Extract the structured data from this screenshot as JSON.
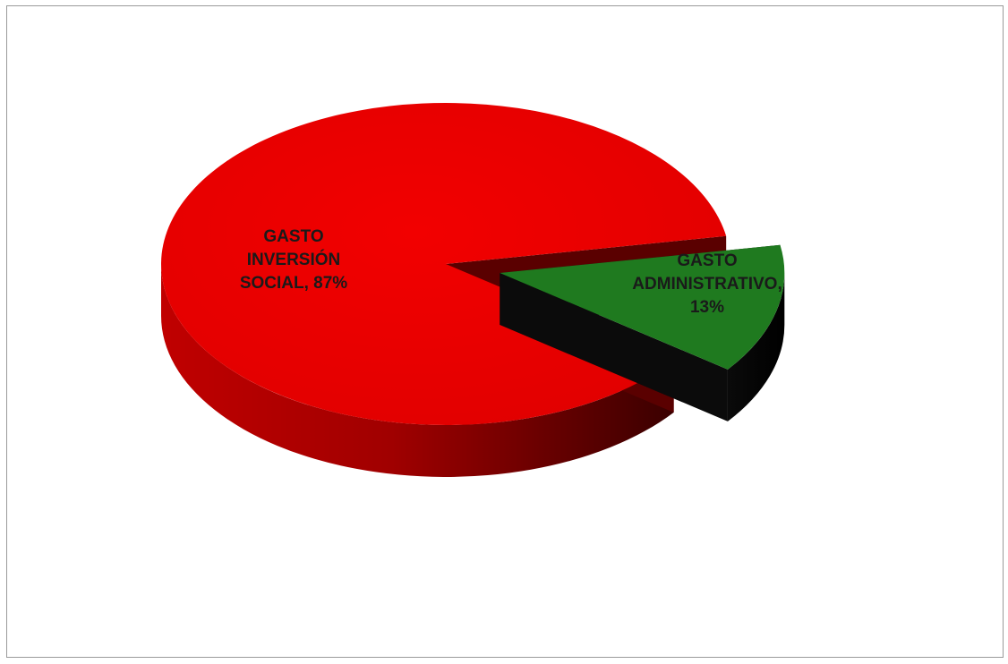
{
  "chart_data": {
    "type": "pie",
    "style": "3d-exploded",
    "title": "",
    "slices": [
      {
        "label": "GASTO INVERSIÓN SOCIAL, 87%",
        "label_lines": [
          "GASTO",
          "INVERSIÓN",
          "SOCIAL, 87%"
        ],
        "value": 87,
        "color": "#e60000",
        "side_color": "#8a0000",
        "exploded": false
      },
      {
        "label": "GASTO ADMINISTRATIVO, 13%",
        "label_lines": [
          "GASTO",
          "ADMINISTRATIVO,",
          "13%"
        ],
        "value": 13,
        "color": "#1f7a1f",
        "side_color": "#050505",
        "exploded": true
      }
    ],
    "legend": "none",
    "grid": false
  }
}
